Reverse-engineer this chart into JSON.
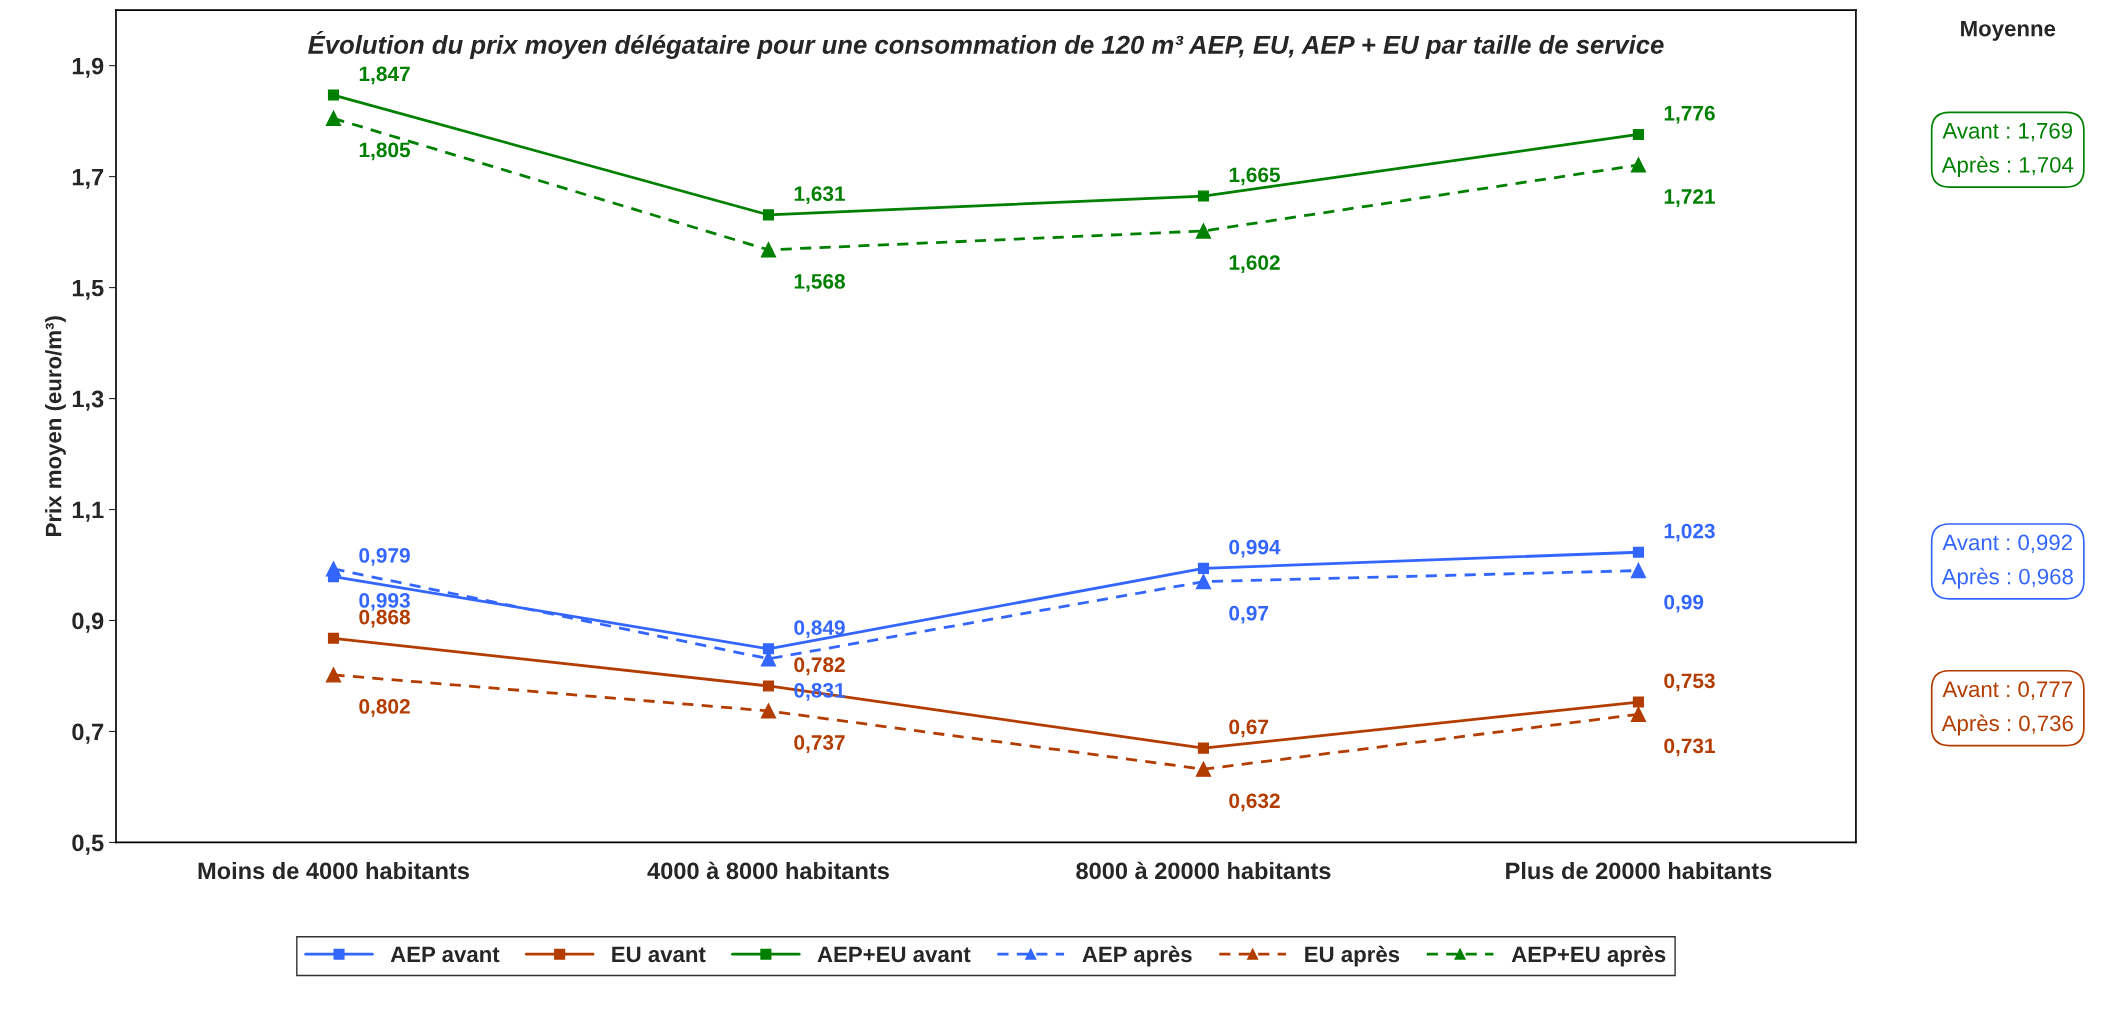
{
  "chart_data": {
    "type": "line",
    "title": "Évolution du prix moyen délégataire pour une consommation de 120 m³ AEP, EU, AEP + EU par taille de service",
    "ylabel": "Prix moyen (euro/m³)",
    "categories": [
      "Moins de 4000 habitants",
      "4000 à 8000 habitants",
      "8000 à 20000 habitants",
      "Plus de 20000 habitants"
    ],
    "series": [
      {
        "name": "AEP avant",
        "color": "#3366ff",
        "values": [
          0.979,
          0.849,
          0.994,
          1.023
        ],
        "value_labels": [
          "0,979",
          "0,849",
          "0,994",
          "1,023"
        ],
        "marker": "square",
        "line_style": "solid"
      },
      {
        "name": "EU avant",
        "color": "#b33c00",
        "values": [
          0.868,
          0.782,
          0.67,
          0.753
        ],
        "value_labels": [
          "0,868",
          "0,782",
          "0,67",
          "0,753"
        ],
        "marker": "square",
        "line_style": "solid"
      },
      {
        "name": "AEP+EU avant",
        "color": "#008000",
        "values": [
          1.847,
          1.631,
          1.665,
          1.776
        ],
        "value_labels": [
          "1,847",
          "1,631",
          "1,665",
          "1,776"
        ],
        "marker": "square",
        "line_style": "solid"
      },
      {
        "name": "AEP après",
        "color": "#3366ff",
        "values": [
          0.993,
          0.831,
          0.97,
          0.99
        ],
        "value_labels": [
          "0,993",
          "0,831",
          "0,97",
          "0,99"
        ],
        "marker": "triangle",
        "line_style": "dashed"
      },
      {
        "name": "EU après",
        "color": "#b33c00",
        "values": [
          0.802,
          0.737,
          0.632,
          0.731
        ],
        "value_labels": [
          "0,802",
          "0,737",
          "0,632",
          "0,731"
        ],
        "marker": "triangle",
        "line_style": "dashed"
      },
      {
        "name": "AEP+EU après",
        "color": "#008000",
        "values": [
          1.805,
          1.568,
          1.602,
          1.721
        ],
        "value_labels": [
          "1,805",
          "1,568",
          "1,602",
          "1,721"
        ],
        "marker": "triangle",
        "line_style": "dashed"
      }
    ],
    "ylim": [
      0.5,
      2.0
    ],
    "yticks": [
      {
        "value": 0.5,
        "label": "0,5"
      },
      {
        "value": 0.7,
        "label": "0,7"
      },
      {
        "value": 0.9,
        "label": "0,9"
      },
      {
        "value": 1.1,
        "label": "1,1"
      },
      {
        "value": 1.3,
        "label": "1,3"
      },
      {
        "value": 1.5,
        "label": "1,5"
      },
      {
        "value": 1.7,
        "label": "1,7"
      },
      {
        "value": 1.9,
        "label": "1,9"
      }
    ],
    "grid": false,
    "legend": "bottom",
    "annotations": [
      "Moyenne",
      "Avant : 1,769\nAprès : 1,704",
      "Avant : 0,992\nAprès : 0,968",
      "Avant : 0,777\nAprès : 0,736"
    ]
  }
}
